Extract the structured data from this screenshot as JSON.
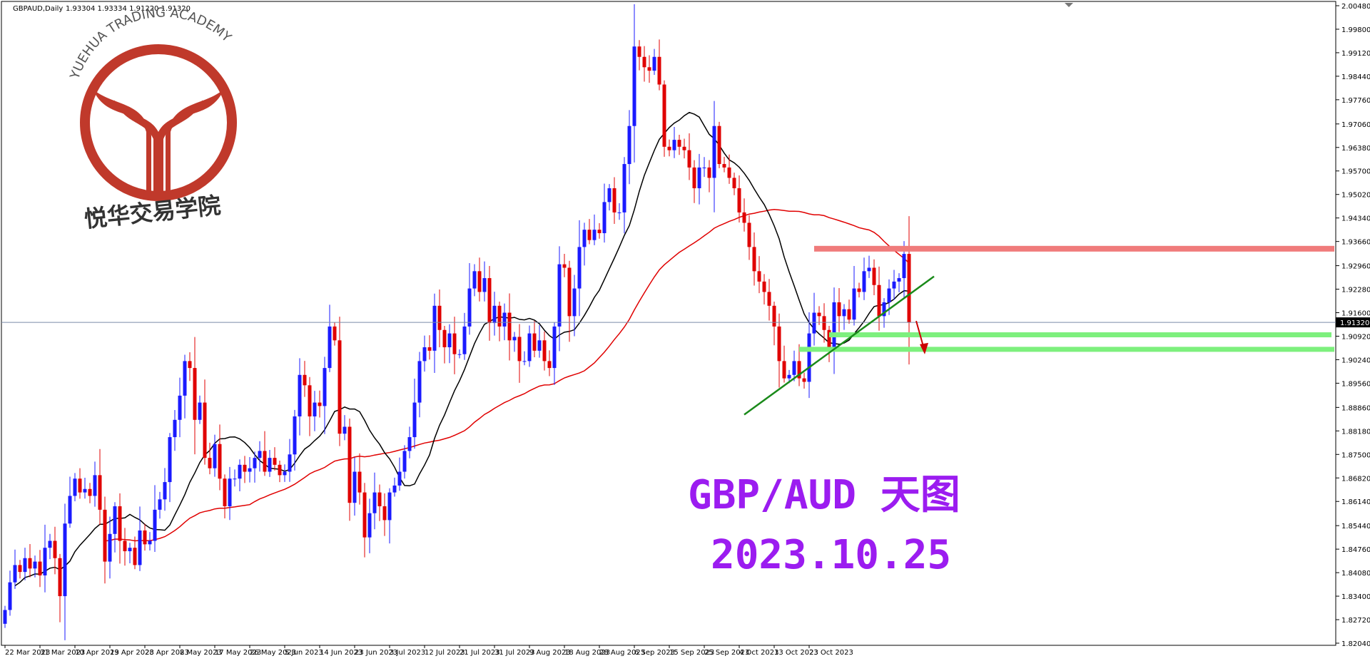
{
  "header": {
    "symbol": "GBPAUD,Daily",
    "ohlc": "1.93304 1.93334 1.91220 1.91320"
  },
  "logo": {
    "arc_text": "YUEHUA TRADING ACADEMY",
    "cn_text": "悦华交易学院",
    "color": "#c0392b"
  },
  "overlay": {
    "title": "GBP/AUD 天图",
    "date": "2023.10.25",
    "color": "#9b1cf0"
  },
  "chart_data": {
    "type": "candlestick",
    "title": "",
    "xlabel": "",
    "ylabel": "",
    "ylim": [
      1.8204,
      2.0048
    ],
    "current_price": 1.9132,
    "current_price_label": "1.91320",
    "y_ticks": [
      "2.00480",
      "1.99800",
      "1.99120",
      "1.98440",
      "1.97760",
      "1.97060",
      "1.96380",
      "1.95700",
      "1.95020",
      "1.94340",
      "1.93660",
      "1.92960",
      "1.92280",
      "1.91600",
      "1.90920",
      "1.90240",
      "1.89560",
      "1.88860",
      "1.88180",
      "1.87500",
      "1.86820",
      "1.86140",
      "1.85440",
      "1.84760",
      "1.84080",
      "1.83400",
      "1.82720",
      "1.82040"
    ],
    "x_ticks": [
      "22 Mar 2023",
      "31 Mar 2023",
      "10 Apr 2023",
      "19 Apr 2023",
      "28 Apr 2023",
      "8 May 2023",
      "17 May 2023",
      "26 May 2023",
      "5 Jun 2023",
      "14 Jun 2023",
      "23 Jun 2023",
      "3 Jul 2023",
      "12 Jul 2023",
      "21 Jul 2023",
      "31 Jul 2023",
      "9 Aug 2023",
      "18 Aug 2023",
      "28 Aug 2023",
      "6 Sep 2023",
      "15 Sep 2023",
      "25 Sep 2023",
      "4 Oct 2023",
      "13 Oct 2023",
      "23 Oct 2023"
    ],
    "x_tick_index": [
      0,
      7,
      14,
      21,
      28,
      35,
      42,
      49,
      56,
      63,
      70,
      77,
      84,
      91,
      98,
      105,
      112,
      119,
      126,
      133,
      140,
      147,
      154,
      161
    ],
    "closes": [
      1.83,
      1.838,
      1.843,
      1.841,
      1.845,
      1.842,
      1.844,
      1.84,
      1.848,
      1.85,
      1.845,
      1.834,
      1.855,
      1.863,
      1.868,
      1.864,
      1.865,
      1.863,
      1.869,
      1.859,
      1.844,
      1.852,
      1.86,
      1.85,
      1.847,
      1.848,
      1.843,
      1.853,
      1.849,
      1.85,
      1.859,
      1.862,
      1.867,
      1.88,
      1.885,
      1.892,
      1.902,
      1.9,
      1.885,
      1.89,
      1.874,
      1.871,
      1.878,
      1.868,
      1.86,
      1.868,
      1.868,
      1.872,
      1.87,
      1.871,
      1.874,
      1.876,
      1.87,
      1.874,
      1.872,
      1.869,
      1.87,
      1.875,
      1.886,
      1.898,
      1.895,
      1.886,
      1.89,
      1.889,
      1.9,
      1.912,
      1.908,
      1.881,
      1.883,
      1.861,
      1.87,
      1.864,
      1.851,
      1.858,
      1.864,
      1.86,
      1.856,
      1.864,
      1.866,
      1.87,
      1.876,
      1.88,
      1.89,
      1.902,
      1.906,
      1.905,
      1.918,
      1.911,
      1.906,
      1.91,
      1.904,
      1.904,
      1.912,
      1.923,
      1.928,
      1.922,
      1.926,
      1.913,
      1.918,
      1.912,
      1.916,
      1.908,
      1.909,
      1.902,
      1.902,
      1.91,
      1.905,
      1.908,
      1.902,
      1.9,
      1.912,
      1.93,
      1.929,
      1.915,
      1.923,
      1.935,
      1.94,
      1.937,
      1.94,
      1.939,
      1.948,
      1.952,
      1.945,
      1.945,
      1.959,
      1.97,
      1.993,
      1.99,
      1.987,
      1.986,
      1.99,
      1.982,
      1.964,
      1.963,
      1.966,
      1.964,
      1.963,
      1.958,
      1.952,
      1.958,
      1.958,
      1.955,
      1.97,
      1.959,
      1.958,
      1.955,
      1.952,
      1.945,
      1.942,
      1.935,
      1.928,
      1.925,
      1.922,
      1.918,
      1.912,
      1.902,
      1.897,
      1.898,
      1.902,
      1.897,
      1.896,
      1.91,
      1.916,
      1.915,
      1.911,
      1.906,
      1.919,
      1.915,
      1.917,
      1.914,
      1.923,
      1.922,
      1.928,
      1.929,
      1.924,
      1.915,
      1.919,
      1.923,
      1.925,
      1.926,
      1.933,
      1.9132
    ],
    "ma_fast_color": "#000000",
    "ma_slow_color": "#e00000",
    "up_color": "#1a1aff",
    "down_color": "#e00000",
    "resistance": {
      "price": 1.9345,
      "color": "#f07b7b"
    },
    "supports": [
      {
        "price": 1.9096,
        "color": "#7df07d"
      },
      {
        "price": 1.9054,
        "color": "#7df07d"
      }
    ],
    "trendline": {
      "from": {
        "index": 148,
        "price": 1.8865
      },
      "to": {
        "index": 186,
        "price": 1.9265
      },
      "color": "#1a8a1a"
    },
    "arrow": {
      "color": "#cc0000"
    },
    "grid": false,
    "legend": "none"
  }
}
